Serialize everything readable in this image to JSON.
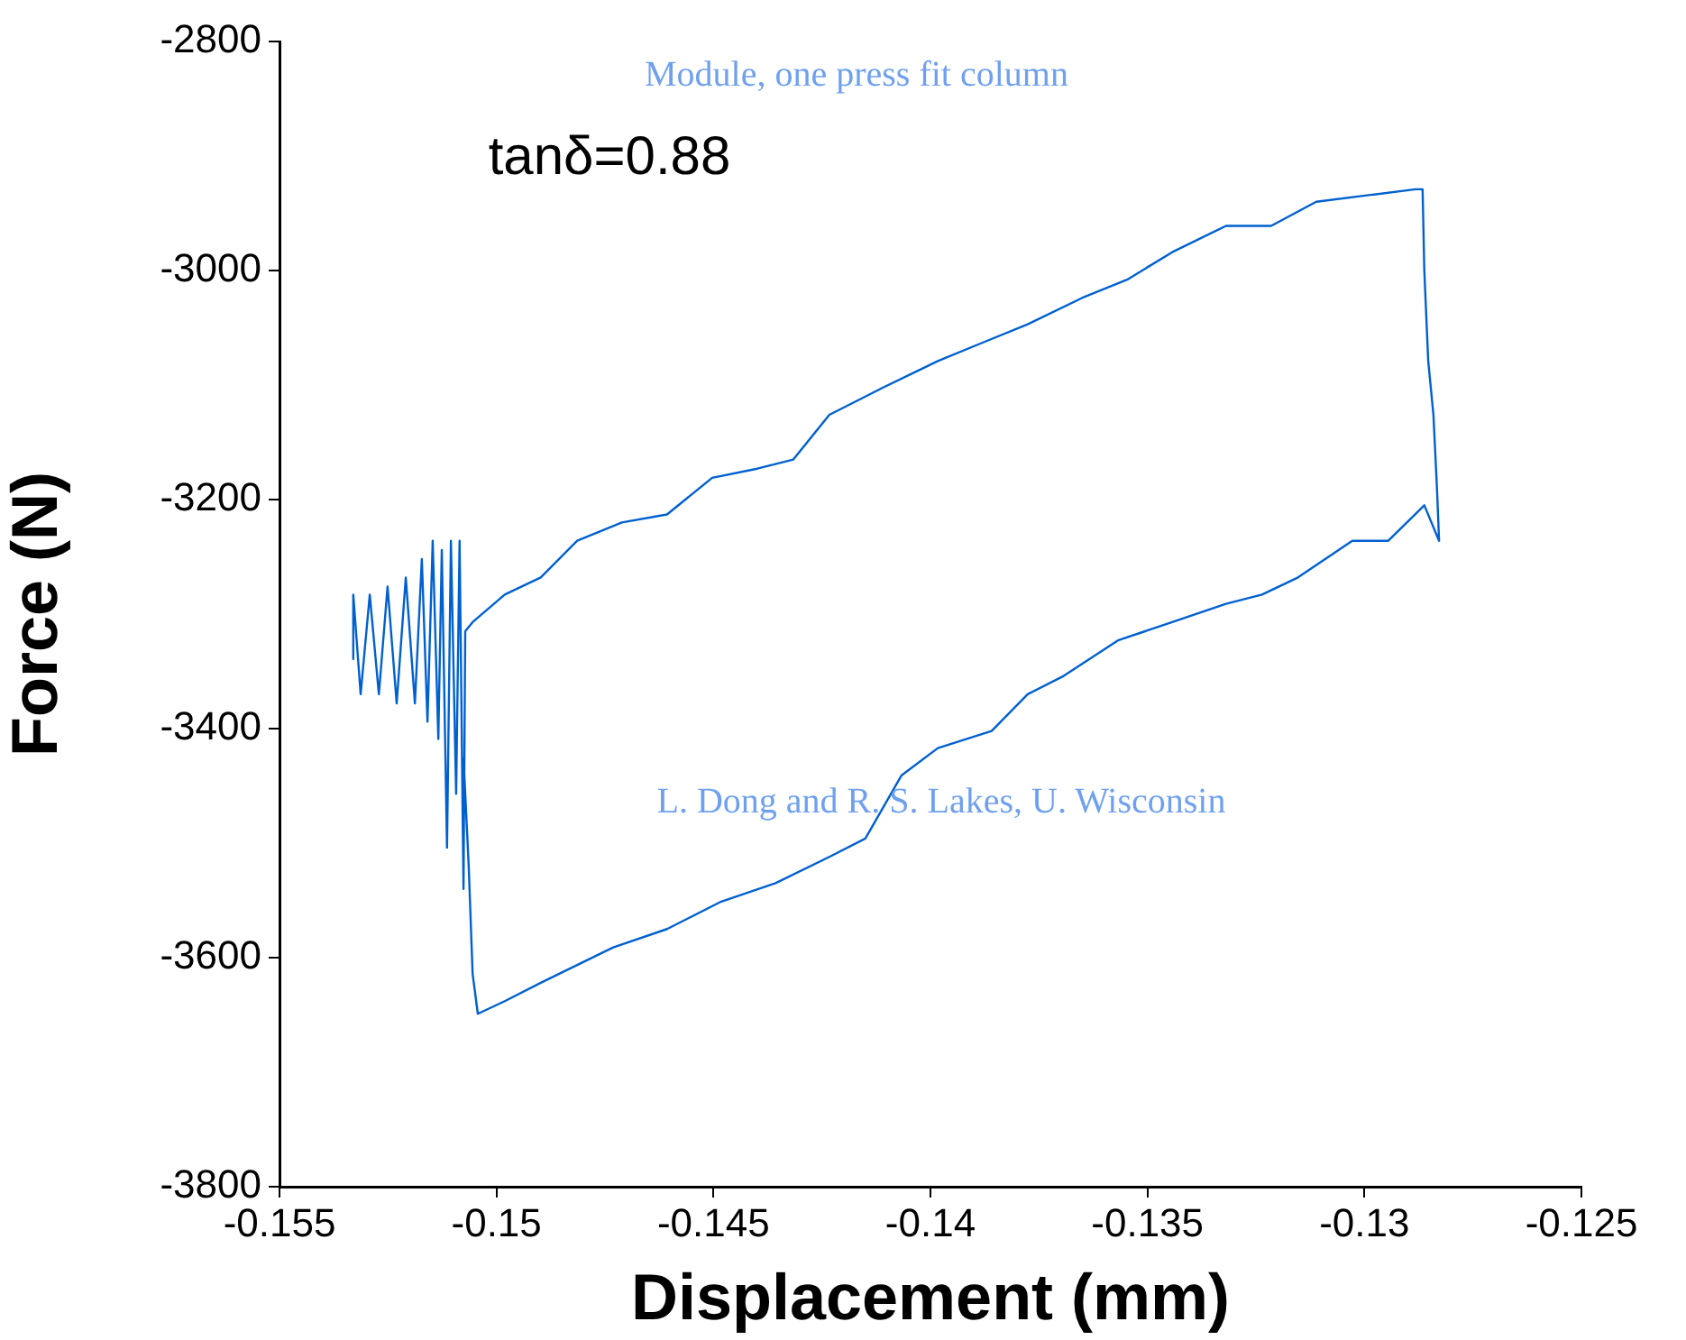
{
  "chart_data": {
    "type": "line",
    "xlabel": "Displacement (mm)",
    "ylabel": "Force (N)",
    "annotations": [
      "Module, one press fit column",
      "tanδ=0.88",
      "L. Dong and R. S. Lakes, U. Wisconsin"
    ],
    "xlim": [
      -0.155,
      -0.125
    ],
    "xticks": [
      {
        "value": -0.155,
        "label": "-0.155"
      },
      {
        "value": -0.15,
        "label": "-0.15"
      },
      {
        "value": -0.145,
        "label": "-0.145"
      },
      {
        "value": -0.14,
        "label": "-0.14"
      },
      {
        "value": -0.135,
        "label": "-0.135"
      },
      {
        "value": -0.13,
        "label": "-0.13"
      },
      {
        "value": -0.125,
        "label": "-0.125"
      }
    ],
    "ylim": [
      -3800,
      -2800
    ],
    "yticks": [
      -3800,
      -3600,
      -3400,
      -3200,
      -3000,
      -2800
    ],
    "grid": false,
    "legend": false,
    "marker": "none",
    "line_style": "solid",
    "series": [
      {
        "color": "#0060d0",
        "x": [
          -0.1533,
          -0.1533,
          -0.15313,
          -0.15292,
          -0.15271,
          -0.15251,
          -0.1523,
          -0.15209,
          -0.15188,
          -0.15172,
          -0.15159,
          -0.15147,
          -0.15134,
          -0.15126,
          -0.15114,
          -0.15105,
          -0.15093,
          -0.15085,
          -0.15076,
          -0.15072,
          -0.15055,
          -0.14981,
          -0.14898,
          -0.14814,
          -0.14711,
          -0.14607,
          -0.14503,
          -0.14399,
          -0.14316,
          -0.14233,
          -0.14108,
          -0.13983,
          -0.1388,
          -0.13776,
          -0.13651,
          -0.13547,
          -0.13443,
          -0.13319,
          -0.13215,
          -0.13111,
          -0.12986,
          -0.12882,
          -0.12866,
          -0.12862,
          -0.12853,
          -0.12841,
          -0.12833,
          -0.12828,
          -0.12862,
          -0.12945,
          -0.13028,
          -0.13153,
          -0.13236,
          -0.13319,
          -0.13443,
          -0.13568,
          -0.13693,
          -0.13776,
          -0.13859,
          -0.13983,
          -0.14067,
          -0.1415,
          -0.14233,
          -0.14357,
          -0.14482,
          -0.14607,
          -0.14731,
          -0.14898,
          -0.14981,
          -0.15043,
          -0.15055,
          -0.15064,
          -0.15076
        ],
        "values": [
          -3340,
          -3283,
          -3370,
          -3283,
          -3370,
          -3276,
          -3378,
          -3268,
          -3378,
          -3252,
          -3394,
          -3236,
          -3409,
          -3244,
          -3504,
          -3236,
          -3457,
          -3236,
          -3540,
          -3315,
          -3307,
          -3283,
          -3268,
          -3236,
          -3220,
          -3213,
          -3181,
          -3173,
          -3165,
          -3126,
          -3102,
          -3079,
          -3063,
          -3047,
          -3024,
          -3008,
          -2984,
          -2961,
          -2961,
          -2940,
          -2934,
          -2929,
          -2929,
          -3000,
          -3079,
          -3126,
          -3189,
          -3236,
          -3205,
          -3236,
          -3236,
          -3268,
          -3283,
          -3291,
          -3307,
          -3323,
          -3354,
          -3370,
          -3402,
          -3417,
          -3441,
          -3496,
          -3512,
          -3535,
          -3551,
          -3575,
          -3591,
          -3622,
          -3638,
          -3649,
          -3614,
          -3520,
          -3425
        ]
      }
    ]
  }
}
